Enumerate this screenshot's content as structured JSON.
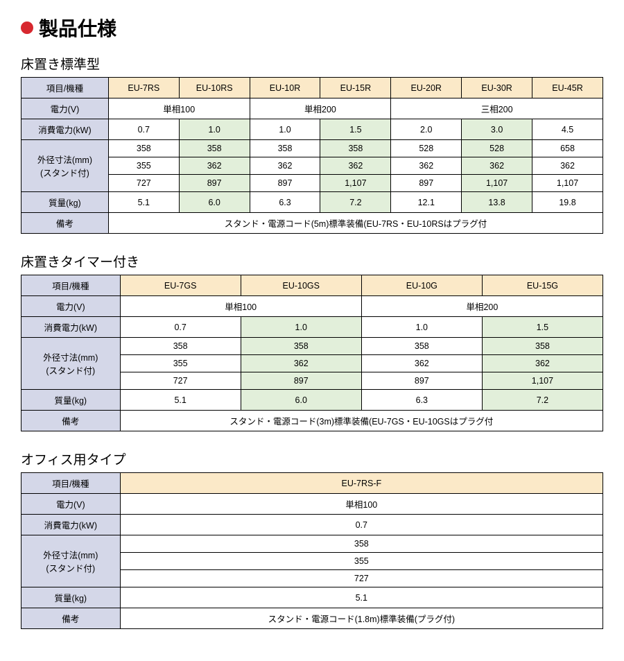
{
  "colors": {
    "bullet": "#d7282f",
    "header_label_bg": "#d4d7e8",
    "header_model_bg": "#fbe9c8",
    "data_white_bg": "#ffffff",
    "data_green_bg": "#e2efda",
    "border": "#000000",
    "text": "#000000"
  },
  "typography": {
    "page_title_fontsize": 28,
    "section_title_fontsize": 19,
    "cell_fontsize": 12.5
  },
  "page_title": "製品仕様",
  "tables": [
    {
      "title": "床置き標準型",
      "header_label": "項目/機種",
      "models": [
        "EU-7RS",
        "EU-10RS",
        "EU-10R",
        "EU-15R",
        "EU-20R",
        "EU-30R",
        "EU-45R"
      ],
      "col_widths_pct": [
        15,
        12.14,
        12.14,
        12.14,
        12.14,
        12.14,
        12.14,
        12.14
      ],
      "rows": [
        {
          "label": "電力(V)",
          "type": "spanned",
          "spanned": [
            [
              2,
              "単相100"
            ],
            [
              2,
              "単相200"
            ],
            [
              3,
              "三相200"
            ]
          ]
        },
        {
          "label": "消費電力(kW)",
          "type": "alt",
          "values": [
            "0.7",
            "1.0",
            "1.0",
            "1.5",
            "2.0",
            "3.0",
            "4.5"
          ]
        },
        {
          "label": "外径寸法(mm)",
          "label2": "(スタンド付)",
          "type": "alt3",
          "sets": [
            [
              "358",
              "358",
              "358",
              "358",
              "528",
              "528",
              "658"
            ],
            [
              "355",
              "362",
              "362",
              "362",
              "362",
              "362",
              "362"
            ],
            [
              "727",
              "897",
              "897",
              "1,107",
              "897",
              "1,107",
              "1,107"
            ]
          ]
        },
        {
          "label": "質量(kg)",
          "type": "alt",
          "values": [
            "5.1",
            "6.0",
            "6.3",
            "7.2",
            "12.1",
            "13.8",
            "19.8"
          ]
        },
        {
          "label": "備考",
          "type": "full",
          "value": "スタンド・電源コード(5m)標準装備(EU-7RS・EU-10RSはプラグ付"
        }
      ]
    },
    {
      "title": "床置きタイマー付き",
      "header_label": "項目/機種",
      "models": [
        "EU-7GS",
        "EU-10GS",
        "EU-10G",
        "EU-15G"
      ],
      "col_widths_pct": [
        17,
        20.75,
        20.75,
        20.75,
        20.75
      ],
      "rows": [
        {
          "label": "電力(V)",
          "type": "spanned",
          "spanned": [
            [
              2,
              "単相100"
            ],
            [
              2,
              "単相200"
            ]
          ]
        },
        {
          "label": "消費電力(kW)",
          "type": "alt",
          "values": [
            "0.7",
            "1.0",
            "1.0",
            "1.5"
          ]
        },
        {
          "label": "外径寸法(mm)",
          "label2": "(スタンド付)",
          "type": "alt3",
          "sets": [
            [
              "358",
              "358",
              "358",
              "358"
            ],
            [
              "355",
              "362",
              "362",
              "362"
            ],
            [
              "727",
              "897",
              "897",
              "1,107"
            ]
          ]
        },
        {
          "label": "質量(kg)",
          "type": "alt",
          "values": [
            "5.1",
            "6.0",
            "6.3",
            "7.2"
          ]
        },
        {
          "label": "備考",
          "type": "full",
          "value": "スタンド・電源コード(3m)標準装備(EU-7GS・EU-10GSはプラグ付"
        }
      ]
    },
    {
      "title": "オフィス用タイプ",
      "header_label": "項目/機種",
      "models": [
        "EU-7RS-F"
      ],
      "col_widths_pct": [
        17,
        83
      ],
      "rows": [
        {
          "label": "電力(V)",
          "type": "full",
          "value": "単相100",
          "bg": "white"
        },
        {
          "label": "消費電力(kW)",
          "type": "full",
          "value": "0.7",
          "bg": "white"
        },
        {
          "label": "外径寸法(mm)",
          "label2": "(スタンド付)",
          "type": "plain3",
          "sets": [
            [
              "358"
            ],
            [
              "355"
            ],
            [
              "727"
            ]
          ]
        },
        {
          "label": "質量(kg)",
          "type": "full",
          "value": "5.1",
          "bg": "white"
        },
        {
          "label": "備考",
          "type": "full",
          "value": "スタンド・電源コード(1.8m)標準装備(プラグ付)",
          "bg": "white"
        }
      ]
    }
  ]
}
